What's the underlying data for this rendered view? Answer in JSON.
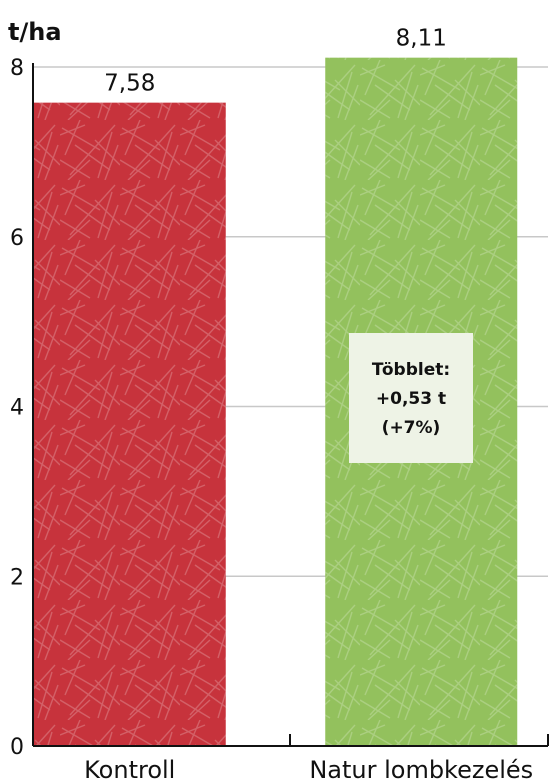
{
  "chart_data": {
    "type": "bar",
    "unit_label": "t/ha",
    "categories": [
      "Kontroll",
      "Natur lombkezelés"
    ],
    "values": [
      7.58,
      8.11
    ],
    "value_labels": [
      "7,58",
      "8,11"
    ],
    "colors": [
      "#c7333c",
      "#93c15d"
    ],
    "ylim": [
      0,
      8
    ],
    "yticks": [
      0,
      2,
      4,
      6,
      8
    ],
    "grid": true,
    "annotation": {
      "lines": [
        "Többlet:",
        "+0,53 t",
        "(+7%)"
      ],
      "attached_to": "Natur lombkezelés"
    }
  }
}
